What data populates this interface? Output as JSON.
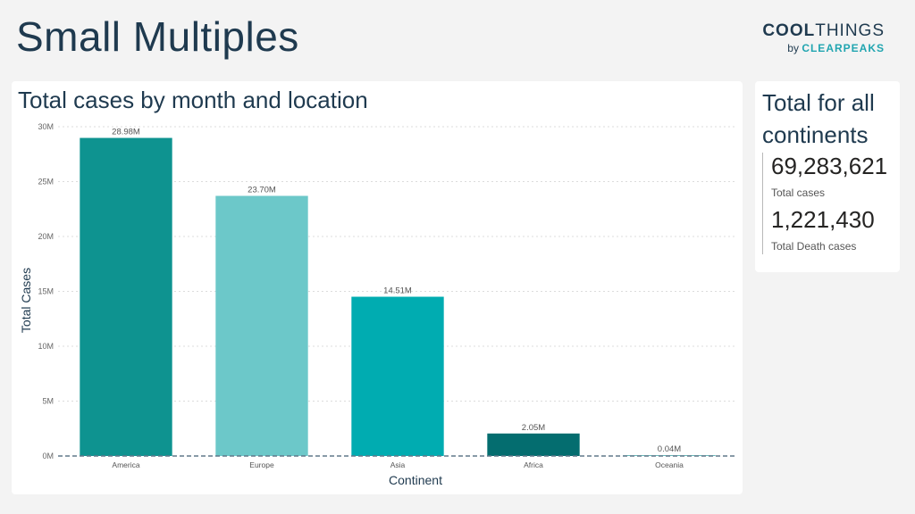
{
  "page": {
    "title": "Small Multiples"
  },
  "brand": {
    "name_bold": "COOL",
    "name_thin": "THINGS",
    "by": "by",
    "company": "CLEARPEAKS"
  },
  "chart_data": {
    "type": "bar",
    "title": "Total cases by month and location",
    "xlabel": "Continent",
    "ylabel": "Total Cases",
    "categories": [
      "America",
      "Europe",
      "Asia",
      "Africa",
      "Oceania"
    ],
    "values": [
      28.98,
      23.7,
      14.51,
      2.05,
      0.04
    ],
    "data_labels": [
      "28.98M",
      "23.70M",
      "14.51M",
      "2.05M",
      "0.04M"
    ],
    "y_ticks": [
      0,
      5,
      10,
      15,
      20,
      25,
      30
    ],
    "y_tick_labels": [
      "0M",
      "5M",
      "10M",
      "15M",
      "20M",
      "25M",
      "30M"
    ],
    "ylim": [
      0,
      30
    ],
    "unit": "M",
    "grid": true,
    "colors": [
      "#0e9390",
      "#6cc8c9",
      "#00acb1",
      "#046d6f",
      "#41a9a8"
    ]
  },
  "kpi": {
    "title": "Total for all continents",
    "total_cases_value": "69,283,621",
    "total_cases_label": "Total cases",
    "total_deaths_value": "1,221,430",
    "total_deaths_label": "Total Death cases"
  }
}
